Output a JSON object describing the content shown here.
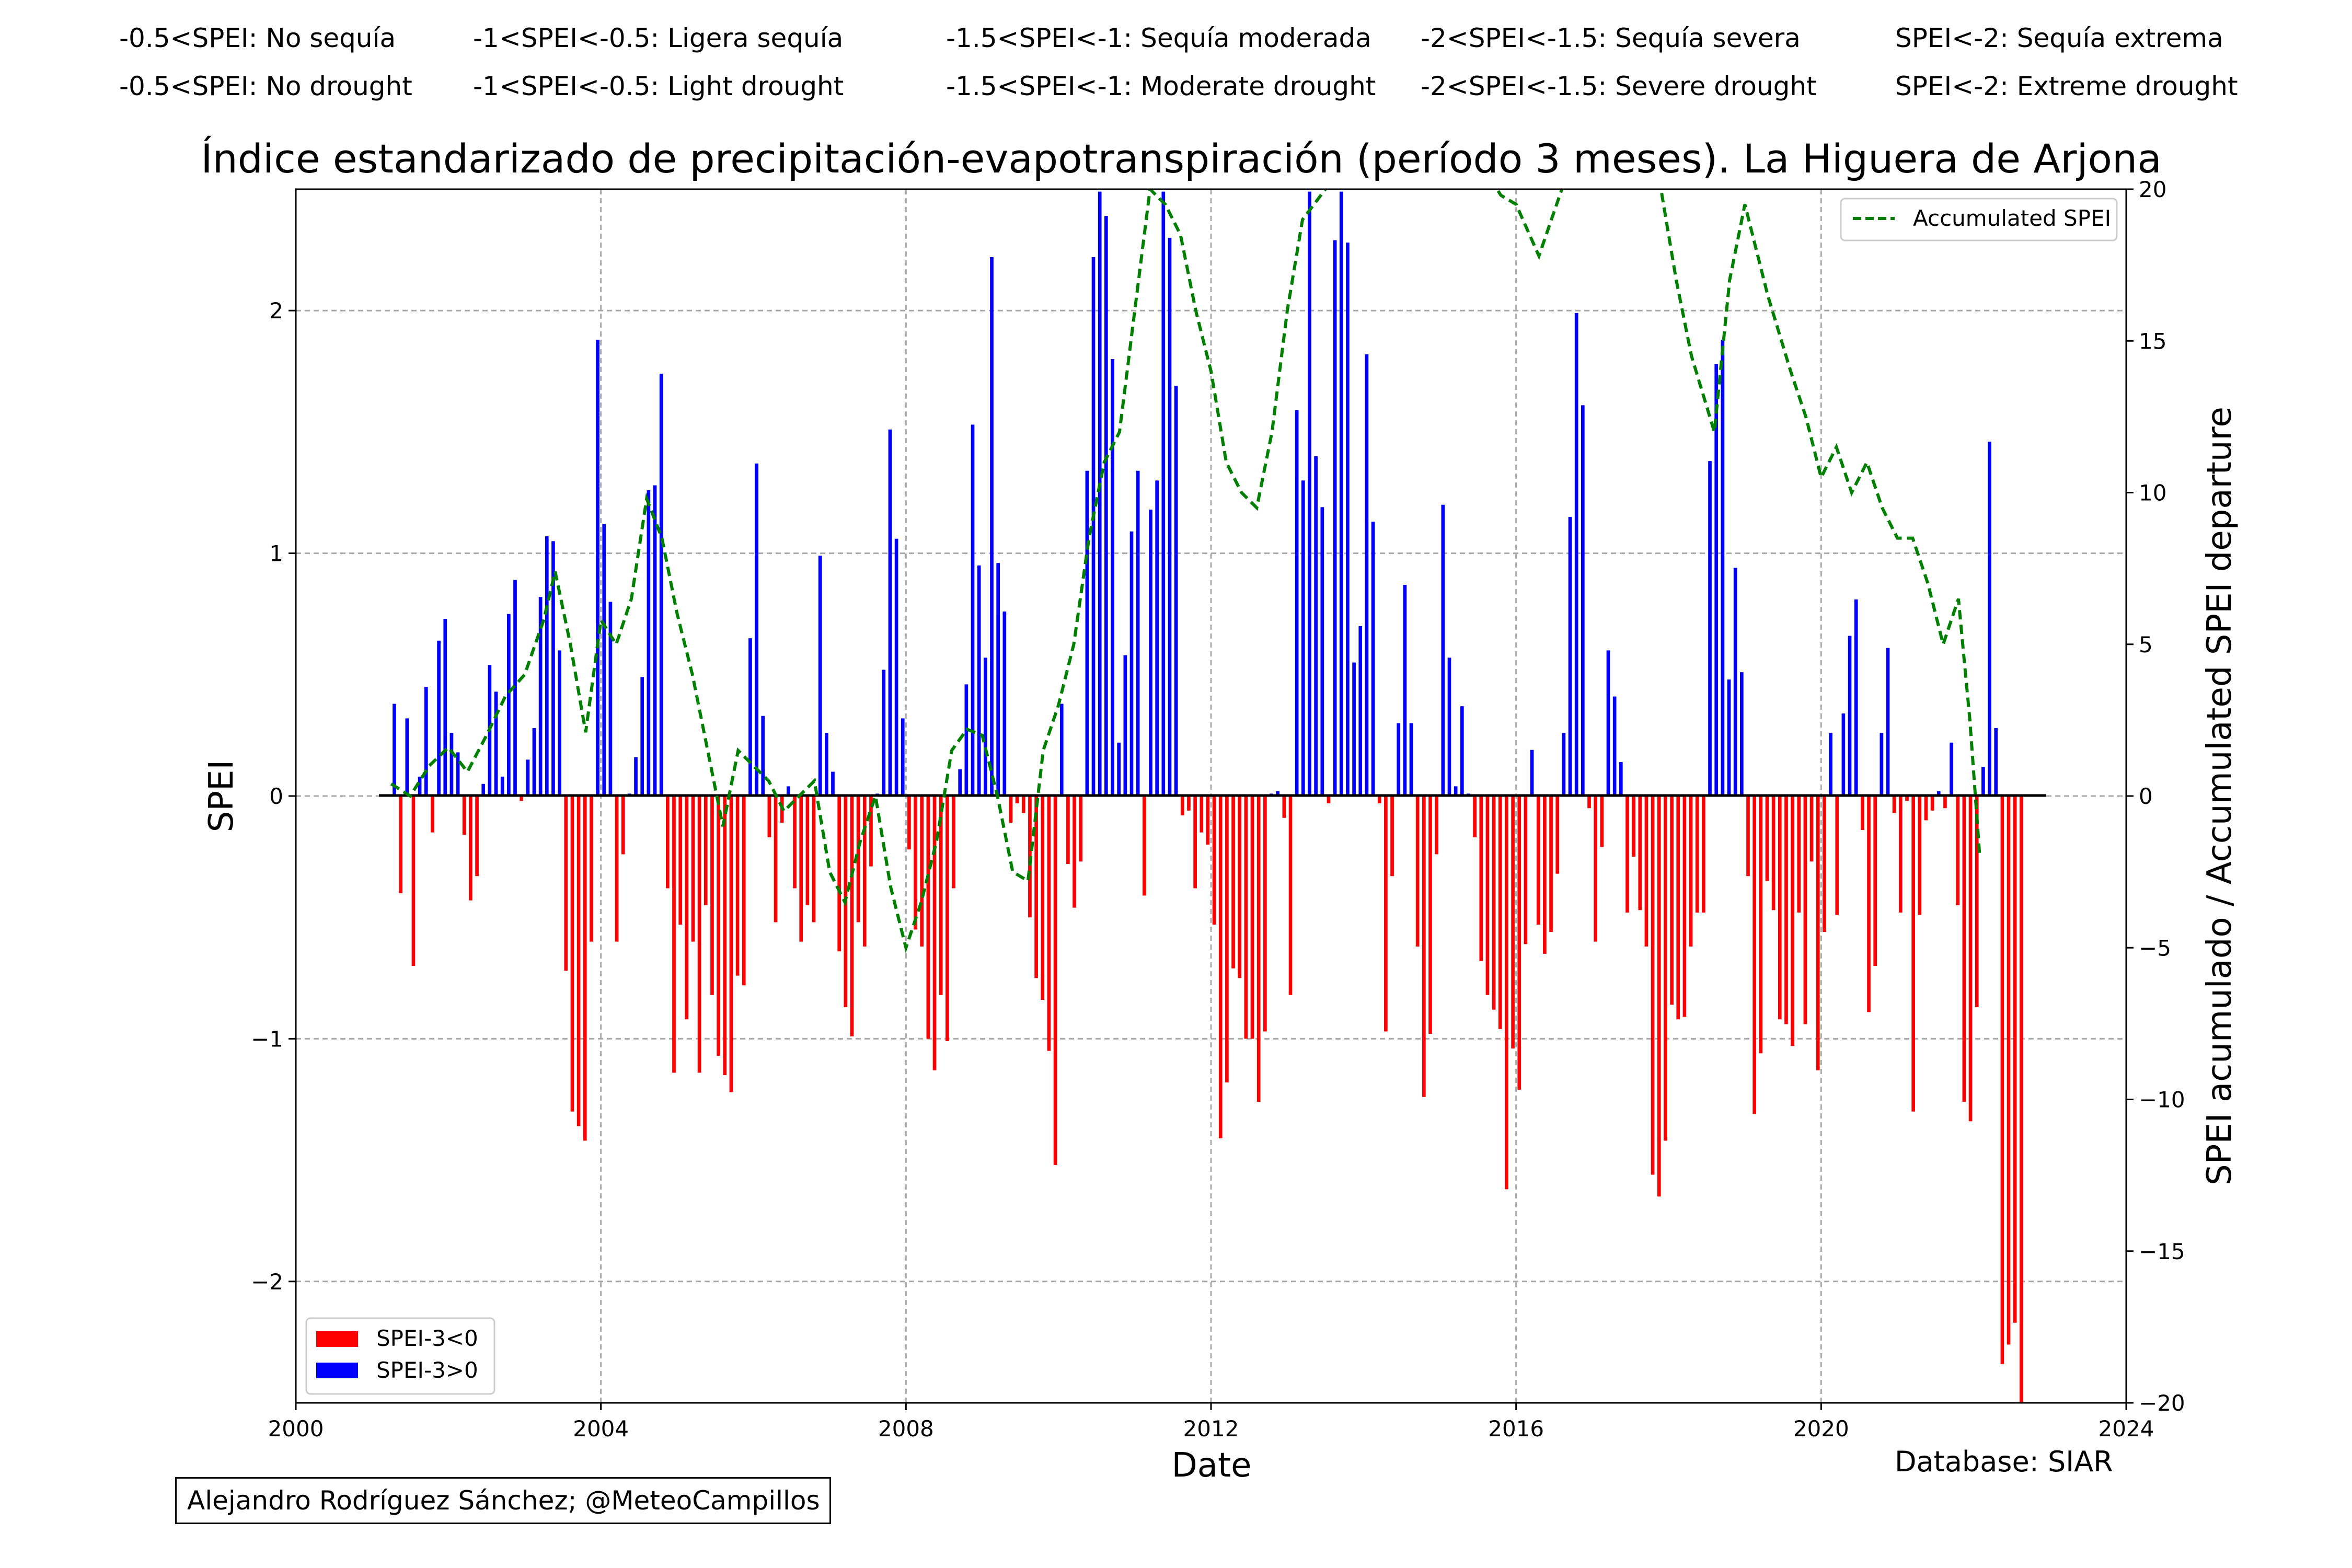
{
  "legend_es": [
    "-0.5<SPEI: No sequía",
    "-1<SPEI<-0.5: Ligera sequía",
    "-1.5<SPEI<-1: Sequía moderada",
    "-2<SPEI<-1.5: Sequía severa",
    "SPEI<-2: Sequía extrema"
  ],
  "legend_en": [
    "-0.5<SPEI: No drought",
    "-1<SPEI<-0.5: Light drought",
    "-1.5<SPEI<-1: Moderate drought",
    "-2<SPEI<-1.5: Severe drought",
    "SPEI<-2: Extreme drought"
  ],
  "credit": "Alejandro Rodríguez Sánchez; @MeteoCampillos",
  "database": "Database: SIAR",
  "chart_data": {
    "type": "bar",
    "title": "Índice estandarizado de precipitación-evapotranspiración (período 3 meses). La Higuera de Arjona",
    "xlabel": "Date",
    "ylabel": "SPEI",
    "y2label": "SPEI acumulado / Accumulated SPEI departure",
    "xlim": [
      2000,
      2024
    ],
    "ylim": [
      -2.5,
      2.5
    ],
    "y2lim": [
      -20,
      20
    ],
    "xticks": [
      2000,
      2004,
      2008,
      2012,
      2016,
      2020,
      2024
    ],
    "yticks": [
      -2,
      -1,
      0,
      1,
      2
    ],
    "y2ticks": [
      -20,
      -15,
      -10,
      -5,
      0,
      5,
      10,
      15,
      20
    ],
    "grid": true,
    "series": [
      {
        "name": "SPEI-3<0",
        "color": "#ff0000",
        "legend": "bottom-left"
      },
      {
        "name": "SPEI-3>0",
        "color": "#0000ff",
        "legend": "bottom-left"
      },
      {
        "name": "Accumulated SPEI",
        "color": "#008000",
        "style": "dashed",
        "axis": "right",
        "legend": "top-right"
      }
    ],
    "spei_start": "2001-04",
    "spei_monthly": [
      0.38,
      -0.4,
      0.32,
      -0.7,
      0.08,
      0.45,
      -0.15,
      0.64,
      0.73,
      0.26,
      0.18,
      -0.16,
      -0.43,
      -0.33,
      0.05,
      0.54,
      0.43,
      0.08,
      0.75,
      0.89,
      -0.02,
      0.15,
      0.28,
      0.82,
      1.07,
      1.05,
      0.6,
      -0.72,
      -1.3,
      -1.36,
      -1.42,
      -0.6,
      1.88,
      1.12,
      0.8,
      -0.6,
      -0.24,
      0.01,
      0.16,
      0.49,
      1.26,
      1.28,
      1.74,
      -0.38,
      -1.14,
      -0.53,
      -0.92,
      -0.6,
      -1.14,
      -0.45,
      -0.82,
      -1.07,
      -1.15,
      -1.22,
      -0.74,
      -0.78,
      0.65,
      1.37,
      0.33,
      -0.17,
      -0.52,
      -0.11,
      0.04,
      -0.38,
      -0.6,
      -0.45,
      -0.52,
      0.99,
      0.26,
      0.1,
      -0.64,
      -0.87,
      -0.99,
      -0.52,
      -0.62,
      -0.29,
      0.01,
      0.52,
      1.51,
      1.06,
      0.32,
      -0.22,
      -0.55,
      -0.62,
      -1.0,
      -1.13,
      -0.82,
      -1.01,
      -0.38,
      0.11,
      0.46,
      1.53,
      0.95,
      0.57,
      2.22,
      0.96,
      0.76,
      -0.11,
      -0.03,
      -0.07,
      -0.5,
      -0.75,
      -0.84,
      -1.05,
      -1.52,
      0.38,
      -0.28,
      -0.46,
      -0.27,
      1.34,
      2.22,
      2.49,
      2.39,
      1.8,
      0.22,
      0.58,
      1.09,
      1.34,
      -0.41,
      1.18,
      1.3,
      2.49,
      2.3,
      1.69,
      -0.08,
      -0.06,
      -0.38,
      -0.15,
      -0.2,
      -0.53,
      -1.41,
      -1.18,
      -0.71,
      -0.75,
      -1.0,
      -1.0,
      -1.26,
      -0.97,
      0.01,
      0.02,
      -0.09,
      -0.82,
      1.59,
      1.3,
      2.49,
      1.4,
      1.19,
      -0.03,
      2.29,
      2.49,
      2.28,
      0.55,
      0.7,
      1.82,
      1.13,
      -0.03,
      -0.97,
      -0.33,
      0.3,
      0.87,
      0.3,
      -0.62,
      -1.24,
      -0.98,
      -0.24,
      1.2,
      0.57,
      0.04,
      0.37,
      0.01,
      -0.17,
      -0.68,
      -0.82,
      -0.88,
      -0.96,
      -1.62,
      -1.04,
      -1.21,
      -0.61,
      0.19,
      -0.53,
      -0.65,
      -0.56,
      -0.32,
      0.26,
      1.15,
      1.99,
      1.61,
      -0.05,
      -0.6,
      -0.21,
      0.6,
      0.41,
      0.14,
      -0.48,
      -0.25,
      -0.47,
      -0.62,
      -1.56,
      -1.65,
      -1.42,
      -0.86,
      -0.92,
      -0.91,
      -0.62,
      -0.48,
      -0.48,
      1.38,
      1.78,
      1.88,
      0.48,
      0.94,
      0.51,
      -0.33,
      -1.31,
      -1.06,
      -0.35,
      -0.47,
      -0.92,
      -0.94,
      -1.03,
      -0.48,
      -0.94,
      -0.27,
      -1.13,
      -0.56,
      0.26,
      -0.49,
      0.34,
      0.66,
      0.81,
      -0.14,
      -0.89,
      -0.7,
      0.26,
      0.61,
      -0.07,
      -0.48,
      -0.02,
      -1.3,
      -0.49,
      -0.1,
      -0.06,
      0.02,
      -0.05,
      0.22,
      -0.45,
      -1.26,
      -1.34,
      -0.87,
      0.12,
      1.46,
      0.28,
      -2.34,
      -2.26,
      -2.17,
      -2.5
    ],
    "accumulated_spei": {
      "x": [
        2001.25,
        2001.5,
        2001.75,
        2002.0,
        2002.25,
        2002.5,
        2002.75,
        2003.0,
        2003.25,
        2003.4,
        2003.6,
        2003.8,
        2004.0,
        2004.2,
        2004.4,
        2004.6,
        2004.8,
        2005.0,
        2005.2,
        2005.4,
        2005.6,
        2005.8,
        2006.0,
        2006.2,
        2006.4,
        2006.6,
        2006.8,
        2007.0,
        2007.2,
        2007.4,
        2007.6,
        2007.8,
        2008.0,
        2008.2,
        2008.4,
        2008.6,
        2008.8,
        2009.0,
        2009.2,
        2009.4,
        2009.6,
        2009.8,
        2010.0,
        2010.2,
        2010.4,
        2010.6,
        2010.8,
        2011.0,
        2011.2,
        2011.4,
        2011.6,
        2011.8,
        2012.0,
        2012.2,
        2012.4,
        2012.6,
        2012.8,
        2013.0,
        2013.2,
        2013.5,
        2014.0,
        2014.5,
        2015.0,
        2015.5,
        2015.8,
        2016.0,
        2016.3,
        2016.6,
        2017.0,
        2017.5,
        2017.9,
        2018.1,
        2018.3,
        2018.6,
        2018.8,
        2019.0,
        2019.3,
        2019.6,
        2019.8,
        2020.0,
        2020.2,
        2020.4,
        2020.6,
        2020.8,
        2021.0,
        2021.2,
        2021.4,
        2021.6,
        2021.8,
        2021.95,
        2022.08
      ],
      "y": [
        0.4,
        0.0,
        1.0,
        1.6,
        0.8,
        2.0,
        3.3,
        4.0,
        5.8,
        7.4,
        5.0,
        2.1,
        5.8,
        5.0,
        6.5,
        9.8,
        8.5,
        6.0,
        4.0,
        1.5,
        -1.0,
        1.5,
        1.0,
        0.5,
        -0.5,
        0.0,
        0.5,
        -2.5,
        -3.5,
        -1.5,
        0.0,
        -3.0,
        -5.0,
        -3.5,
        -1.5,
        1.5,
        2.2,
        2.0,
        0.0,
        -2.5,
        -2.8,
        1.5,
        3.0,
        5.0,
        8.5,
        11.0,
        12.0,
        16.0,
        20.0,
        19.5,
        18.5,
        16.0,
        14.0,
        11.0,
        10.0,
        9.5,
        12.0,
        16.0,
        19.0,
        20.0,
        23.0,
        24.0,
        23.0,
        21.0,
        19.8,
        19.5,
        17.8,
        20.0,
        21.0,
        21.5,
        20.0,
        17.0,
        14.5,
        12.0,
        17.0,
        19.5,
        16.5,
        14.0,
        12.5,
        10.5,
        11.5,
        10.0,
        11.0,
        9.5,
        8.5,
        8.5,
        7.0,
        5.0,
        6.5,
        2.5,
        -2.0
      ]
    }
  }
}
